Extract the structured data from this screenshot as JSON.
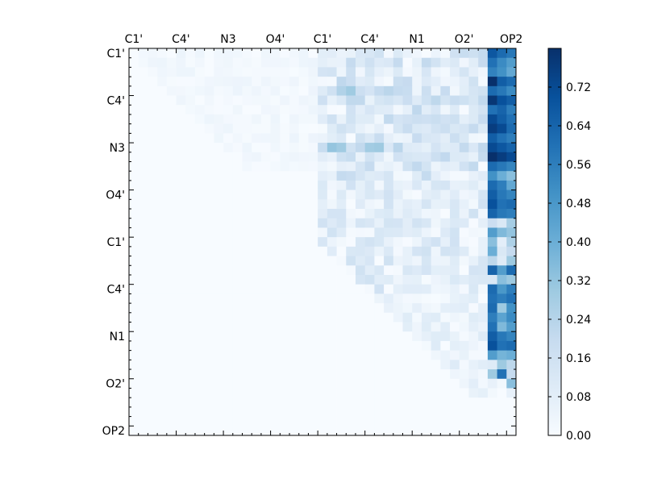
{
  "chart_data": {
    "type": "heatmap",
    "title": "",
    "xlabel": "",
    "ylabel": "",
    "matrix_size": 41,
    "x_tick_labels": [
      "C1'",
      "C4'",
      "N3",
      "O4'",
      "C1'",
      "C4'",
      "N1",
      "O2'",
      "OP2"
    ],
    "y_tick_labels": [
      "C1'",
      "C4'",
      "N3",
      "O4'",
      "C1'",
      "C4'",
      "N1",
      "O2'",
      "OP2"
    ],
    "colorbar": {
      "min": 0.0,
      "max": 0.8,
      "ticks": [
        0.0,
        0.08,
        0.16,
        0.24,
        0.32,
        0.4,
        0.48,
        0.56,
        0.64,
        0.72
      ],
      "tick_labels": [
        "0.00",
        "0.08",
        "0.16",
        "0.24",
        "0.32",
        "0.40",
        "0.48",
        "0.56",
        "0.64",
        "0.72"
      ],
      "colors": [
        "#f7fbff",
        "#deebf7",
        "#c6dbef",
        "#9ecae1",
        "#6baed6",
        "#4292c6",
        "#2171b5",
        "#08519c",
        "#08306b"
      ]
    },
    "description_note": "Upper-triangular pairwise matrix; low values (~0.0-0.05) on the left block, moderate (0.1-0.3) in central columns, high (0.5-0.8) in the last three columns.",
    "high_rows": [
      [
        0.68,
        0.62,
        0.58
      ],
      [
        0.6,
        0.52,
        0.46
      ],
      [
        0.55,
        0.5,
        0.42
      ],
      [
        0.8,
        0.66,
        0.62
      ],
      [
        0.62,
        0.58,
        0.52
      ],
      [
        0.78,
        0.7,
        0.66
      ],
      [
        0.6,
        0.64,
        0.56
      ],
      [
        0.72,
        0.66,
        0.6
      ],
      [
        0.76,
        0.72,
        0.62
      ],
      [
        0.66,
        0.6,
        0.56
      ],
      [
        0.72,
        0.68,
        0.64
      ],
      [
        0.8,
        0.76,
        0.72
      ],
      [
        0.62,
        0.58,
        0.54
      ],
      [
        0.5,
        0.4,
        0.34
      ],
      [
        0.62,
        0.56,
        0.42
      ],
      [
        0.66,
        0.58,
        0.54
      ],
      [
        0.7,
        0.6,
        0.62
      ],
      [
        0.64,
        0.58,
        0.56
      ],
      [
        0.18,
        0.12,
        0.28
      ],
      [
        0.46,
        0.36,
        0.32
      ],
      [
        0.34,
        0.08,
        0.26
      ],
      [
        0.4,
        0.12,
        0.2
      ],
      [
        0.22,
        0.1,
        0.3
      ],
      [
        0.64,
        0.46,
        0.62
      ],
      [
        0.12,
        0.34,
        0.3
      ],
      [
        0.62,
        0.48,
        0.56
      ],
      [
        0.6,
        0.56,
        0.6
      ],
      [
        0.62,
        0.3,
        0.5
      ],
      [
        0.56,
        0.44,
        0.52
      ],
      [
        0.6,
        0.36,
        0.46
      ],
      [
        0.66,
        0.58,
        0.54
      ],
      [
        0.7,
        0.6,
        0.62
      ],
      [
        0.46,
        0.38,
        0.4
      ],
      [
        0.1,
        0.3,
        0.22
      ],
      [
        0.3,
        0.6,
        0.2
      ],
      [
        0.06,
        0.02,
        0.34
      ],
      [
        0.02,
        0.0,
        0.06
      ],
      [
        0.0,
        0.0,
        0.0
      ],
      [
        0.0,
        0.0,
        0.0
      ],
      [
        0.0,
        0.0,
        0.0
      ],
      [
        0.0,
        0.0,
        0.0
      ]
    ]
  }
}
